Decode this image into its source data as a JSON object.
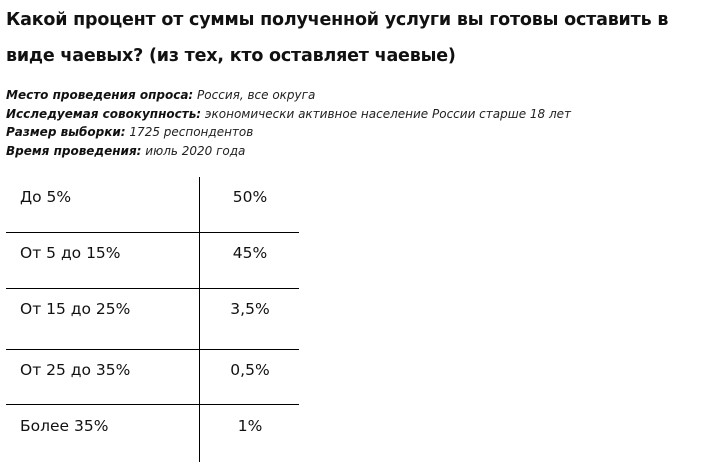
{
  "title": "Какой процент от суммы полученной услуги вы готовы оставить в виде чаевых? (из тех, кто оставляет чаевые)",
  "meta": [
    {
      "label": "Место проведения опроса:",
      "value": "Россия, все округа"
    },
    {
      "label": "Исследуемая совокупность:",
      "value": "экономически активное население России старше 18 лет"
    },
    {
      "label": "Размер выборки:",
      "value": "1725 респондентов"
    },
    {
      "label": "Время проведения:",
      "value": "июль 2020 года"
    }
  ],
  "table": {
    "rows": [
      {
        "label": "До 5%",
        "value": "50%"
      },
      {
        "label": "От 5 до 15%",
        "value": "45%"
      },
      {
        "label": "От 15 до 25%",
        "value": "3,5%"
      },
      {
        "label": "От 25 до 35%",
        "value": "0,5%"
      },
      {
        "label": "Более 35%",
        "value": "1%"
      }
    ]
  }
}
